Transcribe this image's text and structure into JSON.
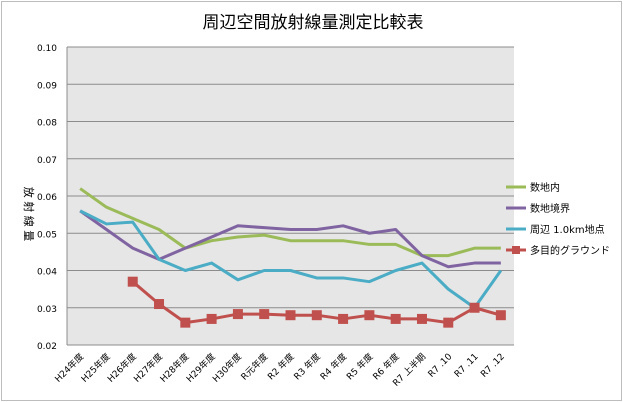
{
  "chart_data": {
    "type": "line",
    "title": "周辺空間放射線量測定比較表",
    "ylabel": "放 射 線 量",
    "xlabel": "",
    "ylim": [
      0.02,
      0.1
    ],
    "yticks": [
      "0.02",
      "0.03",
      "0.04",
      "0.05",
      "0.06",
      "0.07",
      "0.08",
      "0.09",
      "0.10"
    ],
    "grid": true,
    "legend": "right",
    "categories": [
      "H24年度",
      "H25年度",
      "H26年度",
      "H27年度",
      "H28年度",
      "H29年度",
      "H30年度",
      "R元年度",
      "R2 年度",
      "R3 年度",
      "R4 年度",
      "R5 年度",
      "R6 年度",
      "R7 上半期",
      "R7 .10",
      "R7 .11",
      "R7 .12"
    ],
    "series": [
      {
        "name": "数地内",
        "color": "#9bbb59",
        "marker": "none",
        "values": [
          0.062,
          0.057,
          0.054,
          0.051,
          0.046,
          0.048,
          0.049,
          0.0495,
          0.048,
          0.048,
          0.048,
          0.047,
          0.047,
          0.044,
          0.044,
          0.046,
          0.046
        ]
      },
      {
        "name": "数地境界",
        "color": "#8064a2",
        "marker": "none",
        "values": [
          0.056,
          0.051,
          0.046,
          0.043,
          0.046,
          0.049,
          0.052,
          0.0515,
          0.051,
          0.051,
          0.052,
          0.05,
          0.051,
          0.044,
          0.041,
          0.042,
          0.042
        ]
      },
      {
        "name": "周辺 1.0km地点",
        "color": "#4bacc6",
        "marker": "none",
        "values": [
          0.056,
          0.0525,
          0.053,
          0.043,
          0.04,
          0.042,
          0.0375,
          0.04,
          0.04,
          0.038,
          0.038,
          0.037,
          0.04,
          0.042,
          0.035,
          0.03,
          0.04
        ]
      },
      {
        "name": "多目的グラウンド",
        "color": "#c0504d",
        "marker": "square",
        "values": [
          null,
          null,
          0.037,
          0.031,
          0.026,
          0.027,
          0.0283,
          0.0283,
          0.028,
          0.028,
          0.027,
          0.028,
          0.027,
          0.027,
          0.026,
          0.03,
          0.028
        ]
      }
    ]
  }
}
